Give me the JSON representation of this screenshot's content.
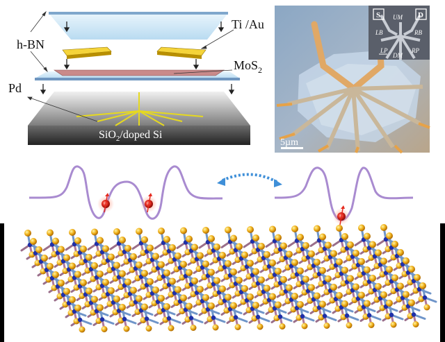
{
  "device_schematic": {
    "labels": {
      "hbn": "h-BN",
      "ti_au": "Ti /Au",
      "mos2_base": "MoS",
      "mos2_sub": "2",
      "pd": "Pd",
      "substrate_a": "SiO",
      "substrate_sub": "2",
      "substrate_b": "/doped Si"
    }
  },
  "micrograph": {
    "scale_bar": "5µm",
    "inset": {
      "source": "S",
      "drain": "D",
      "gates": [
        "UM",
        "LB",
        "RB",
        "LP",
        "DM",
        "RP"
      ]
    }
  },
  "colors": {
    "hbn": "#cfe6f5",
    "gold": "#e8c21a",
    "mos2": "#c98a8a",
    "potential": "#a98bd0",
    "electron": "#e52a1e",
    "lattice_bond": "#6f95c9",
    "lattice_mo": "#1f2fa8",
    "lattice_s": "#f0b21c",
    "background": "#000000"
  }
}
